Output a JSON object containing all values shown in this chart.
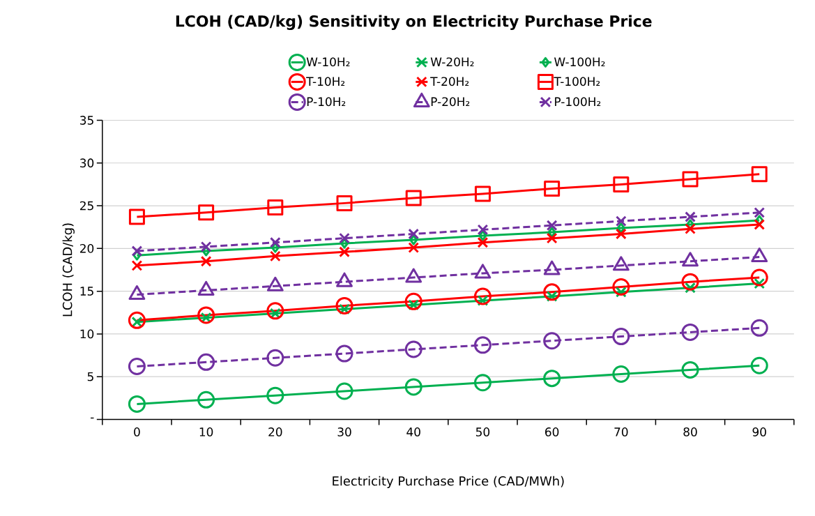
{
  "chart_data": {
    "type": "line",
    "title": "LCOH (CAD/kg) Sensitivity on Electricity Purchase Price",
    "xlabel": "Electricity Purchase Price (CAD/MWh)",
    "ylabel": "LCOH (CAD/kg)",
    "categories": [
      "0",
      "10",
      "20",
      "30",
      "40",
      "50",
      "60",
      "70",
      "80",
      "90"
    ],
    "ylim": [
      0,
      35
    ],
    "yticks": [
      {
        "value": 0,
        "label": "-"
      },
      5,
      10,
      15,
      20,
      25,
      30,
      35
    ],
    "grid": "y",
    "legend": "top",
    "series": [
      {
        "name": "W-10H₂",
        "color": "#00b050",
        "marker": "circle",
        "line_style": "solid",
        "values": [
          1.8,
          2.3,
          2.8,
          3.3,
          3.8,
          4.3,
          4.8,
          5.3,
          5.8,
          6.3
        ]
      },
      {
        "name": "W-20H₂",
        "color": "#00b050",
        "marker": "cross",
        "line_style": "solid",
        "values": [
          11.4,
          11.9,
          12.4,
          12.9,
          13.4,
          13.9,
          14.4,
          14.9,
          15.4,
          15.9
        ]
      },
      {
        "name": "W-100H₂",
        "color": "#00b050",
        "marker": "diamond",
        "line_style": "solid",
        "values": [
          19.2,
          19.7,
          20.1,
          20.6,
          21.0,
          21.5,
          21.9,
          22.4,
          22.8,
          23.3
        ]
      },
      {
        "name": "T-10H₂",
        "color": "#ff0000",
        "marker": "circle",
        "line_style": "solid",
        "values": [
          11.6,
          12.2,
          12.7,
          13.3,
          13.8,
          14.4,
          14.9,
          15.5,
          16.1,
          16.6
        ]
      },
      {
        "name": "T-20H₂",
        "color": "#ff0000",
        "marker": "cross",
        "line_style": "solid",
        "values": [
          18.0,
          18.5,
          19.1,
          19.6,
          20.1,
          20.7,
          21.2,
          21.7,
          22.3,
          22.8
        ]
      },
      {
        "name": "T-100H₂",
        "color": "#ff0000",
        "marker": "square",
        "line_style": "solid",
        "values": [
          23.7,
          24.2,
          24.8,
          25.3,
          25.9,
          26.4,
          27.0,
          27.5,
          28.1,
          28.7
        ]
      },
      {
        "name": "P-10H₂",
        "color": "#7030a0",
        "marker": "circle",
        "line_style": "dashed",
        "values": [
          6.2,
          6.7,
          7.2,
          7.7,
          8.2,
          8.7,
          9.2,
          9.7,
          10.2,
          10.7
        ]
      },
      {
        "name": "P-20H₂",
        "color": "#7030a0",
        "marker": "triangle",
        "line_style": "dashed",
        "values": [
          14.6,
          15.1,
          15.6,
          16.1,
          16.6,
          17.1,
          17.5,
          18.0,
          18.5,
          19.0
        ]
      },
      {
        "name": "P-100H₂",
        "color": "#7030a0",
        "marker": "cross",
        "line_style": "dashed",
        "values": [
          19.7,
          20.2,
          20.7,
          21.2,
          21.7,
          22.2,
          22.7,
          23.2,
          23.7,
          24.2
        ]
      }
    ]
  }
}
